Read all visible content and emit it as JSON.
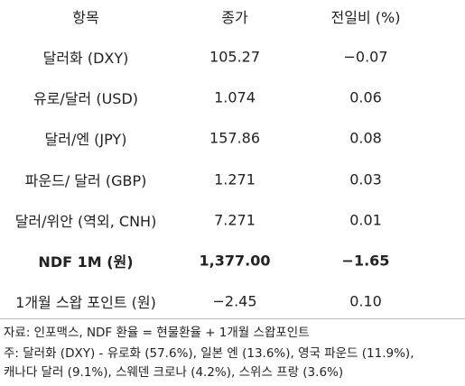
{
  "table": {
    "header": [
      "항목",
      "종가",
      "전일비 (%)"
    ],
    "rows": [
      [
        "달러화 (DXY)",
        "105.27",
        "−0.07"
      ],
      [
        "유로/달러 (USD)",
        "1.074",
        "0.06"
      ],
      [
        "달러/엔 (JPY)",
        "157.86",
        "0.08"
      ],
      [
        "파운드/ 달러 (GBP)",
        "1.271",
        "0.03"
      ],
      [
        "달러/위안 (역외, CNH)",
        "7.271",
        "0.01"
      ],
      [
        "NDF 1M (원)",
        "1,377.00",
        "−1.65"
      ],
      [
        "1개월 스왑 포인트 (원)",
        "−2.45",
        "0.10"
      ]
    ]
  },
  "notes": [
    "자료: 인포맥스, NDF 환율 = 현물환율 + 1개월 스왑포인트",
    "주: 달러화 (DXY) - 유로화 (57.6%), 일본 엔 (13.6%), 영국 파운드 (11.9%),",
    "캐나다 달러 (9.1%), 스웨덴 크로나 (4.2%), 스위스 프랑 (3.6%)"
  ]
}
